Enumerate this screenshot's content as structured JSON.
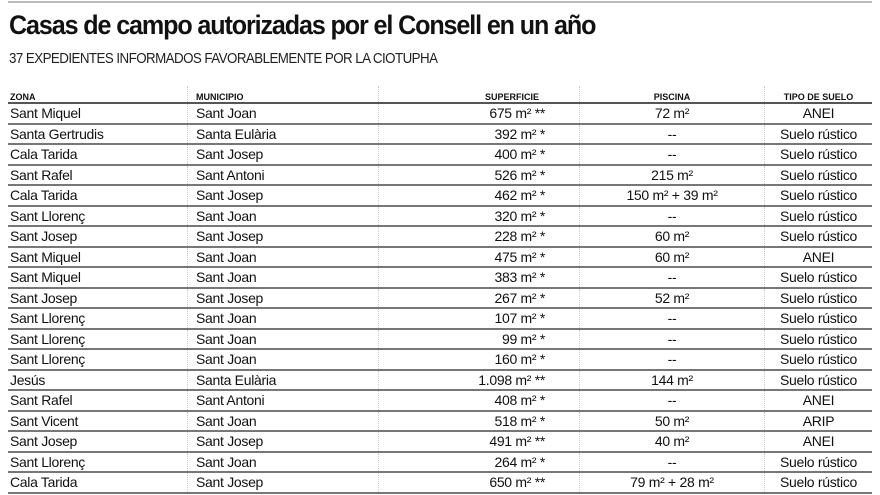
{
  "title": "Casas de campo autorizadas por el Consell en un año",
  "subtitle": "37 EXPEDIENTES INFORMADOS FAVORABLEMENTE POR LA CIOTUPHA",
  "columns": [
    "ZONA",
    "MUNICIPIO",
    "SUPERFICIE",
    "PISCINA",
    "TIPO DE SUELO"
  ],
  "rows": [
    [
      "Sant Miquel",
      "Sant Joan",
      "675 m² **",
      "72 m²",
      "ANEI"
    ],
    [
      "Santa Gertrudis",
      "Santa Eulària",
      "392 m² *",
      "--",
      "Suelo rústico"
    ],
    [
      "Cala Tarida",
      "Sant Josep",
      "400 m² *",
      "--",
      "Suelo rústico"
    ],
    [
      "Sant Rafel",
      "Sant Antoni",
      "526 m² *",
      "215 m²",
      "Suelo rústico"
    ],
    [
      "Cala Tarida",
      "Sant Josep",
      "462 m² *",
      "150 m² + 39 m²",
      "Suelo rústico"
    ],
    [
      "Sant Llorenç",
      "Sant Joan",
      "320 m² *",
      "--",
      "Suelo rústico"
    ],
    [
      "Sant Josep",
      "Sant Josep",
      "228 m² *",
      "60 m²",
      "Suelo rústico"
    ],
    [
      "Sant Miquel",
      "Sant Joan",
      "475 m² *",
      "60 m²",
      "ANEI"
    ],
    [
      "Sant Miquel",
      "Sant Joan",
      "383 m² *",
      "--",
      "Suelo rústico"
    ],
    [
      "Sant Josep",
      "Sant Josep",
      "267 m² *",
      "52 m²",
      "Suelo rústico"
    ],
    [
      "Sant Llorenç",
      "Sant Joan",
      "107 m² *",
      "--",
      "Suelo rústico"
    ],
    [
      "Sant Llorenç",
      "Sant Joan",
      "99 m² *",
      "--",
      "Suelo rústico"
    ],
    [
      "Sant Llorenç",
      "Sant Joan",
      "160 m² *",
      "--",
      "Suelo rústico"
    ],
    [
      "Jesús",
      "Santa Eulària",
      "1.098 m² **",
      "144 m²",
      "Suelo rústico"
    ],
    [
      "Sant Rafel",
      "Sant Antoni",
      "408 m² *",
      "--",
      "ANEI"
    ],
    [
      "Sant Vicent",
      "Sant Joan",
      "518 m² *",
      "50 m²",
      "ARIP"
    ],
    [
      "Sant Josep",
      "Sant Josep",
      "491 m² **",
      "40 m²",
      "ANEI"
    ],
    [
      "Sant Llorenç",
      "Sant Joan",
      "264 m² *",
      "--",
      "Suelo rústico"
    ],
    [
      "Cala Tarida",
      "Sant Josep",
      "650 m² **",
      "79 m² + 28 m²",
      "Suelo rústico"
    ]
  ]
}
